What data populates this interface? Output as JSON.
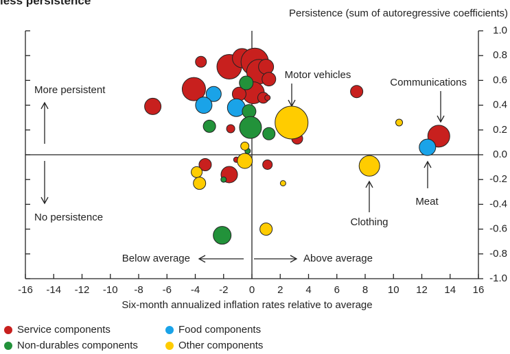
{
  "chart_data": {
    "type": "scatter",
    "title": "less persistence",
    "y_label": "Persistence (sum of autoregressive coefficients)",
    "x_label": "Six-month annualized inflation rates relative to average",
    "xlim": [
      -16,
      16
    ],
    "ylim": [
      -1.0,
      1.0
    ],
    "xticks": [
      -16,
      -14,
      -12,
      -10,
      -8,
      -6,
      -4,
      -2,
      0,
      2,
      4,
      6,
      8,
      10,
      12,
      14,
      16
    ],
    "yticks": [
      {
        "value": -1.0,
        "label": "-1.0"
      },
      -0.8,
      -0.6,
      -0.4,
      -0.2,
      {
        "value": 0,
        "label": "0.0"
      },
      0.2,
      0.4,
      0.6,
      0.8,
      {
        "value": 1.0,
        "label": "1.0"
      }
    ],
    "legend": "bottom",
    "annotations": [
      "More persistent",
      "No persistence",
      "Below average",
      "Above average",
      "Motor vehicles",
      "Communications",
      "Meat",
      "Clothing"
    ],
    "series": [
      {
        "name": "Service components",
        "color": "#c8201e",
        "x": [
          -7.0,
          -3.6,
          -4.1,
          -1.5,
          -1.6,
          -3.3,
          -1.1,
          1.1,
          3.2,
          7.4,
          13.2,
          -1.6,
          -0.7,
          0.2,
          0.5,
          1.0,
          1.2,
          0.1,
          -0.9,
          0.8,
          1.1
        ],
        "values": [
          0.39,
          0.75,
          0.53,
          0.21,
          -0.16,
          -0.08,
          -0.04,
          -0.08,
          0.13,
          0.51,
          0.15,
          0.71,
          0.78,
          0.75,
          0.67,
          0.71,
          0.61,
          0.5,
          0.49,
          0.46,
          0.46
        ],
        "sizes": [
          12,
          8,
          17,
          6,
          12,
          9,
          4,
          7,
          8,
          9,
          16,
          18,
          14,
          20,
          18,
          11,
          10,
          16,
          10,
          8,
          4
        ]
      },
      {
        "name": "Food components",
        "color": "#1aa3e8",
        "x": [
          -2.7,
          -3.4,
          -1.1,
          12.4
        ],
        "values": [
          0.49,
          0.4,
          0.38,
          0.06
        ],
        "sizes": [
          11,
          12,
          13,
          12
        ]
      },
      {
        "name": "Non-durables components",
        "color": "#22923a",
        "x": [
          -0.4,
          -0.2,
          -0.1,
          -3.0,
          1.2,
          -0.3,
          -2.0,
          -2.1
        ],
        "values": [
          0.58,
          0.35,
          0.22,
          0.23,
          0.17,
          0.03,
          -0.2,
          -0.65
        ],
        "sizes": [
          10,
          10,
          16,
          9,
          9,
          4,
          4,
          13
        ]
      },
      {
        "name": "Other components",
        "color": "#ffcc00",
        "x": [
          2.8,
          10.4,
          8.3,
          -0.5,
          -0.5,
          -3.9,
          -3.7,
          2.2,
          1.0
        ],
        "values": [
          0.26,
          0.26,
          -0.09,
          0.07,
          -0.05,
          -0.14,
          -0.23,
          -0.23,
          -0.6
        ],
        "sizes": [
          24,
          5,
          15,
          6,
          11,
          8,
          9,
          4,
          9
        ]
      }
    ]
  }
}
